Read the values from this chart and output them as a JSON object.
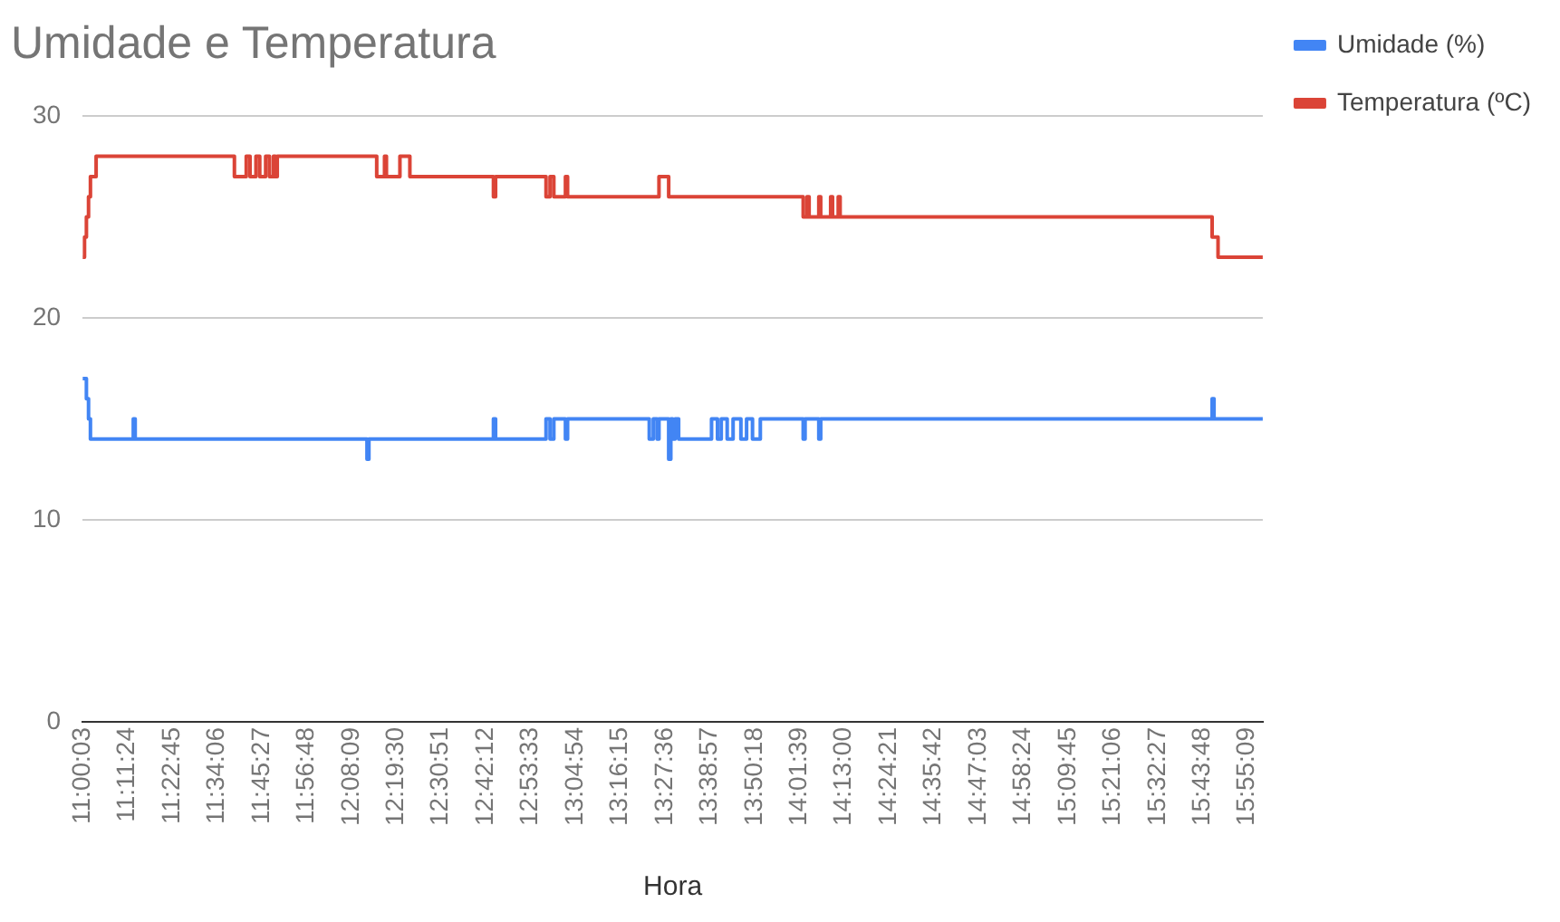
{
  "chart_data": {
    "type": "step",
    "title": "Umidade e Temperatura",
    "xlabel": "Hora",
    "xlim": [
      11.0008,
      15.985
    ],
    "xticks": [
      {
        "value": 11.0008,
        "label": "11:00:03"
      },
      {
        "value": 11.19,
        "label": "11:11:24"
      },
      {
        "value": 11.3792,
        "label": "11:22:45"
      },
      {
        "value": 11.5683,
        "label": "11:34:06"
      },
      {
        "value": 11.7575,
        "label": "11:45:27"
      },
      {
        "value": 11.9467,
        "label": "11:56:48"
      },
      {
        "value": 12.1358,
        "label": "12:08:09"
      },
      {
        "value": 12.325,
        "label": "12:19:30"
      },
      {
        "value": 12.5142,
        "label": "12:30:51"
      },
      {
        "value": 12.7033,
        "label": "12:42:12"
      },
      {
        "value": 12.8925,
        "label": "12:53:33"
      },
      {
        "value": 13.0817,
        "label": "13:04:54"
      },
      {
        "value": 13.2708,
        "label": "13:16:15"
      },
      {
        "value": 13.46,
        "label": "13:27:36"
      },
      {
        "value": 13.6492,
        "label": "13:38:57"
      },
      {
        "value": 13.8383,
        "label": "13:50:18"
      },
      {
        "value": 14.0275,
        "label": "14:01:39"
      },
      {
        "value": 14.2167,
        "label": "14:13:00"
      },
      {
        "value": 14.4058,
        "label": "14:24:21"
      },
      {
        "value": 14.595,
        "label": "14:35:42"
      },
      {
        "value": 14.7842,
        "label": "14:47:03"
      },
      {
        "value": 14.9733,
        "label": "14:58:24"
      },
      {
        "value": 15.1625,
        "label": "15:09:45"
      },
      {
        "value": 15.3517,
        "label": "15:21:06"
      },
      {
        "value": 15.5408,
        "label": "15:32:27"
      },
      {
        "value": 15.73,
        "label": "15:43:48"
      },
      {
        "value": 15.9192,
        "label": "15:55:09"
      }
    ],
    "ylim": [
      0,
      30
    ],
    "yticks": [
      0,
      10,
      20,
      30
    ],
    "grid": "y",
    "legend": "right",
    "marker": "none",
    "series": [
      {
        "name": "Umidade (%)",
        "color": "#4285f4",
        "x": [
          11.001,
          11.017,
          11.026,
          11.034,
          11.215,
          11.223,
          12.202,
          12.21,
          12.736,
          12.745,
          12.958,
          12.975,
          12.991,
          13.04,
          13.049,
          13.394,
          13.411,
          13.427,
          13.435,
          13.476,
          13.485,
          13.493,
          13.503,
          13.518,
          13.657,
          13.682,
          13.698,
          13.723,
          13.748,
          13.781,
          13.805,
          13.83,
          13.863,
          13.888,
          14.044,
          14.052,
          14.11,
          14.118,
          15.771,
          15.779,
          15.985
        ],
        "values": [
          17,
          16,
          15,
          14,
          15,
          14,
          13,
          14,
          15,
          14,
          15,
          14,
          15,
          14,
          15,
          14,
          15,
          14,
          15,
          13,
          15,
          14,
          15,
          14,
          15,
          14,
          15,
          14,
          15,
          14,
          15,
          14,
          15,
          15,
          14,
          15,
          14,
          15,
          16,
          15,
          15
        ]
      },
      {
        "name": "Temperatura (ºC)",
        "color": "#db4437",
        "x": [
          11.001,
          11.009,
          11.017,
          11.026,
          11.034,
          11.058,
          11.642,
          11.692,
          11.708,
          11.733,
          11.749,
          11.774,
          11.79,
          11.807,
          11.815,
          11.823,
          12.243,
          12.276,
          12.284,
          12.341,
          12.383,
          12.736,
          12.745,
          12.958,
          12.975,
          12.991,
          13.04,
          13.049,
          13.435,
          13.476,
          14.044,
          14.06,
          14.069,
          14.11,
          14.118,
          14.16,
          14.168,
          14.192,
          14.2,
          15.771,
          15.796,
          15.985
        ],
        "values": [
          23,
          24,
          25,
          26,
          27,
          28,
          27,
          28,
          27,
          28,
          27,
          28,
          27,
          28,
          27,
          28,
          27,
          28,
          27,
          28,
          27,
          26,
          27,
          26,
          27,
          26,
          27,
          26,
          27,
          26,
          25,
          26,
          25,
          26,
          25,
          26,
          25,
          26,
          25,
          24,
          23,
          23
        ]
      }
    ]
  }
}
